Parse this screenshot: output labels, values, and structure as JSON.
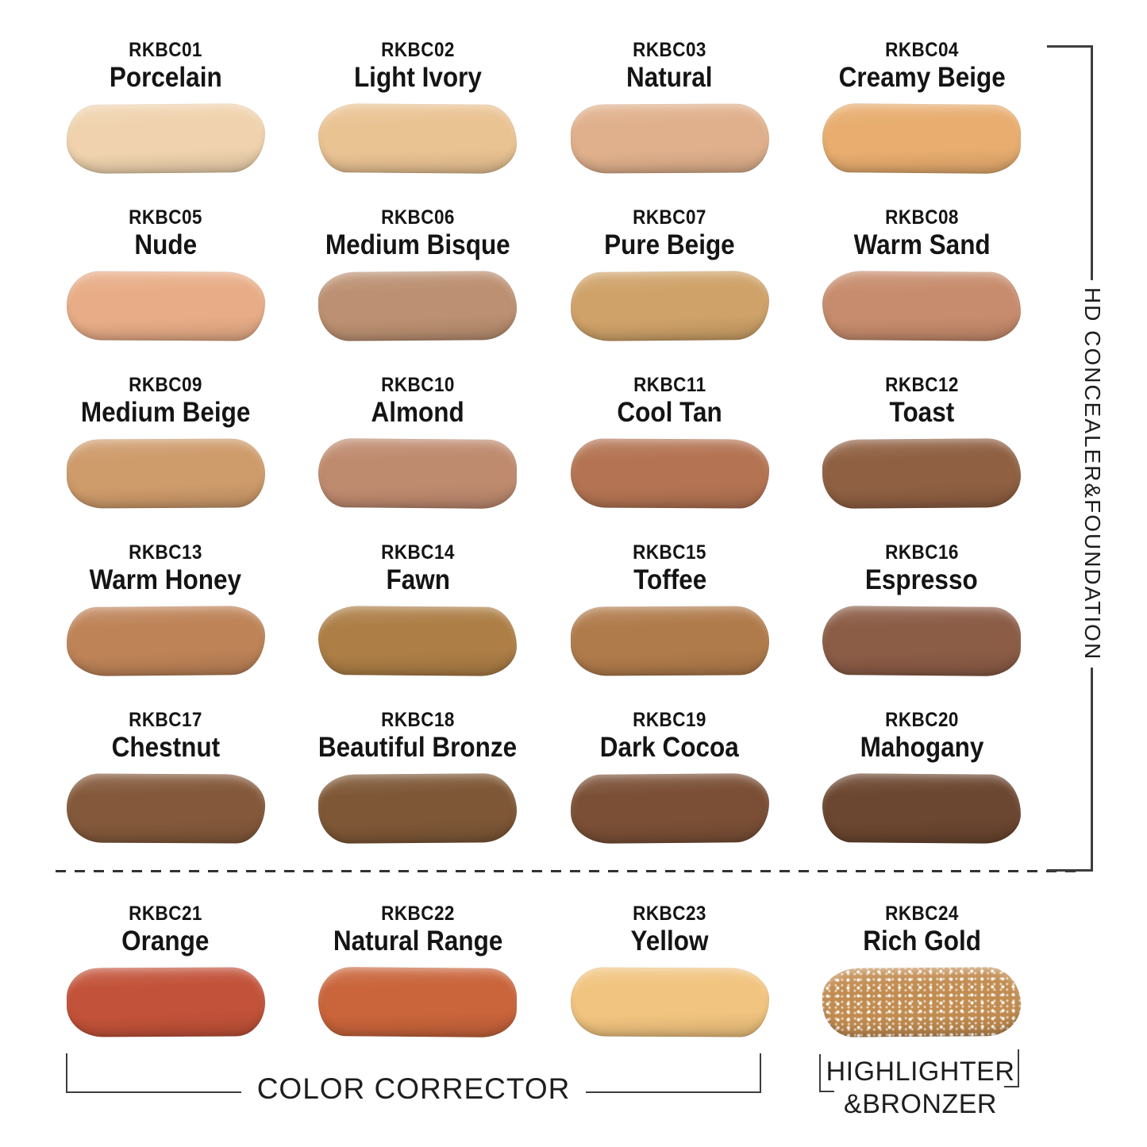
{
  "page": {
    "background": "#ffffff",
    "line_color": "#3d3d3d",
    "text_color": "#141414"
  },
  "groups": {
    "right_label": "HD CONCEALER&FOUNDATION",
    "color_corrector_label": "COLOR CORRECTOR",
    "highlighter_label_line1": "HIGHLIGHTER",
    "highlighter_label_line2": "&BRONZER"
  },
  "shades": [
    {
      "code": "RKBC01",
      "name": "Porcelain",
      "color": "#F0D3AE"
    },
    {
      "code": "RKBC02",
      "name": "Light Ivory",
      "color": "#EAC393"
    },
    {
      "code": "RKBC03",
      "name": "Natural",
      "color": "#E0B08C"
    },
    {
      "code": "RKBC04",
      "name": "Creamy Beige",
      "color": "#E8AD6F"
    },
    {
      "code": "RKBC05",
      "name": "Nude",
      "color": "#E8AD87"
    },
    {
      "code": "RKBC06",
      "name": "Medium Bisque",
      "color": "#BC9072"
    },
    {
      "code": "RKBC07",
      "name": "Pure Beige",
      "color": "#CFA269"
    },
    {
      "code": "RKBC08",
      "name": "Warm Sand",
      "color": "#C78C6D"
    },
    {
      "code": "RKBC09",
      "name": "Medium Beige",
      "color": "#CE9B6B"
    },
    {
      "code": "RKBC10",
      "name": "Almond",
      "color": "#BF8B6F"
    },
    {
      "code": "RKBC11",
      "name": "Cool Tan",
      "color": "#B47453"
    },
    {
      "code": "RKBC12",
      "name": "Toast",
      "color": "#8F6042"
    },
    {
      "code": "RKBC13",
      "name": "Warm Honey",
      "color": "#BE8357"
    },
    {
      "code": "RKBC14",
      "name": "Fawn",
      "color": "#AD7E46"
    },
    {
      "code": "RKBC15",
      "name": "Toffee",
      "color": "#B07B4B"
    },
    {
      "code": "RKBC16",
      "name": "Espresso",
      "color": "#8B5C46"
    },
    {
      "code": "RKBC17",
      "name": "Chestnut",
      "color": "#84593B"
    },
    {
      "code": "RKBC18",
      "name": "Beautiful Bronze",
      "color": "#7E5736"
    },
    {
      "code": "RKBC19",
      "name": "Dark Cocoa",
      "color": "#7B4F36"
    },
    {
      "code": "RKBC20",
      "name": "Mahogany",
      "color": "#6B4630"
    },
    {
      "code": "RKBC21",
      "name": "Orange",
      "color": "#C25239"
    },
    {
      "code": "RKBC22",
      "name": "Natural Range",
      "color": "#C9643B"
    },
    {
      "code": "RKBC23",
      "name": "Yellow",
      "color": "#F1C47F"
    },
    {
      "code": "RKBC24",
      "name": "Rich Gold",
      "color": "#C28C50",
      "shimmer": true
    }
  ]
}
